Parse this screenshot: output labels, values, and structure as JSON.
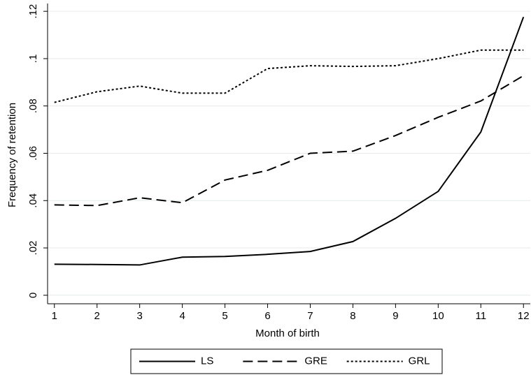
{
  "chart_data": {
    "type": "line",
    "x_label": "Month of birth",
    "y_label": "Frequency of retention",
    "x": [
      1,
      2,
      3,
      4,
      5,
      6,
      7,
      8,
      9,
      10,
      11,
      12
    ],
    "series": [
      {
        "name": "LS",
        "color": "#000000",
        "style": "solid",
        "values": [
          0.0131,
          0.013,
          0.0128,
          0.0161,
          0.0164,
          0.0173,
          0.0185,
          0.0227,
          0.0325,
          0.0439,
          0.069,
          0.1176
        ]
      },
      {
        "name": "GRE",
        "color": "#000000",
        "style": "dash",
        "values": [
          0.0382,
          0.0379,
          0.0412,
          0.0391,
          0.0487,
          0.0528,
          0.06,
          0.0609,
          0.0675,
          0.0752,
          0.0821,
          0.0928
        ]
      },
      {
        "name": "GRL",
        "color": "#000000",
        "style": "dot",
        "values": [
          0.0815,
          0.086,
          0.0884,
          0.0854,
          0.0854,
          0.0958,
          0.097,
          0.0967,
          0.097,
          0.1,
          0.1036,
          0.1036
        ]
      }
    ],
    "xlim": [
      0.84,
      12.16
    ],
    "ylim": [
      -0.0036,
      0.1233
    ],
    "xticks": [
      1,
      2,
      3,
      4,
      5,
      6,
      7,
      8,
      9,
      10,
      11,
      12
    ],
    "yticks": [
      0,
      {
        "value": 0.02,
        "label": ".02"
      },
      {
        "value": 0.04,
        "label": ".04"
      },
      {
        "value": 0.06,
        "label": ".06"
      },
      {
        "value": 0.08,
        "label": ".08"
      },
      {
        "value": 0.1,
        "label": ".1"
      },
      {
        "value": 0.12,
        "label": ".12"
      }
    ],
    "grid": true,
    "legend": "bottom"
  }
}
